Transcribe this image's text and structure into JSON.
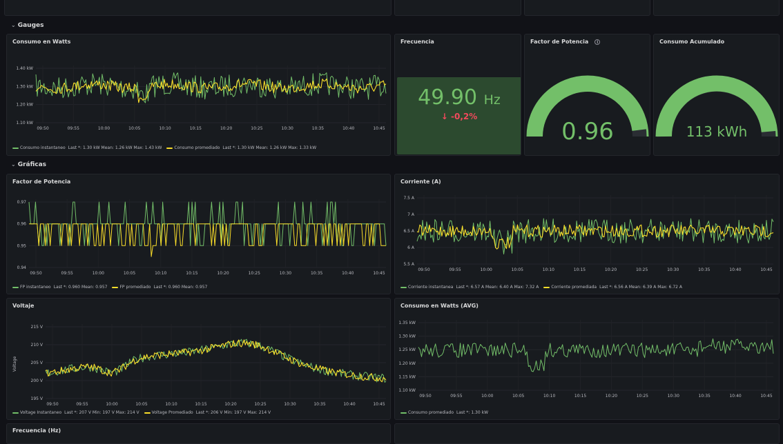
{
  "rows": {
    "gauges": "Gauges",
    "graficas": "Gráficas"
  },
  "top_panels": 4,
  "consumo_watts": {
    "title": "Consumo en Watts",
    "yticks": [
      "1.40 kW",
      "1.30 kW",
      "1.20 kW",
      "1.10 kW"
    ],
    "xticks": [
      "09:50",
      "09:55",
      "10:00",
      "10:05",
      "10:10",
      "10:15",
      "10:20",
      "10:25",
      "10:30",
      "10:35",
      "10:40",
      "10:45"
    ],
    "legend": [
      {
        "name": "Consumo instantaneo",
        "stats": "Last *: 1.30 kW  Mean: 1.26 kW  Max: 1.43 kW",
        "color": "#73bf69"
      },
      {
        "name": "Consumo promediado",
        "stats": "Last *: 1.30 kW  Mean: 1.26 kW  Max: 1.33 kW",
        "color": "#fade2a"
      }
    ]
  },
  "frecuencia_stat": {
    "title": "Frecuencia",
    "value": "49.90",
    "unit": "Hz",
    "delta": "-0,2%"
  },
  "factor_gauge": {
    "title": "Factor de Potencia",
    "value": "0.96",
    "fill": 0.96
  },
  "consumo_acum": {
    "title": "Consumo Acumulado",
    "value": "113 kWh",
    "fill": 0.97
  },
  "fp_chart": {
    "title": "Factor de Potencia",
    "yticks": [
      "0.97",
      "0.96",
      "0.95",
      "0.94"
    ],
    "xticks": [
      "09:50",
      "09:55",
      "10:00",
      "10:05",
      "10:10",
      "10:15",
      "10:20",
      "10:25",
      "10:30",
      "10:35",
      "10:40",
      "10:45"
    ],
    "legend": [
      {
        "name": "FP instantaneo",
        "stats": "Last *: 0.960  Mean: 0.957",
        "color": "#73bf69"
      },
      {
        "name": "FP promediado",
        "stats": "Last *: 0.960  Mean: 0.957",
        "color": "#fade2a"
      }
    ]
  },
  "corriente": {
    "title": "Corriente (A)",
    "yticks": [
      "7.5 A",
      "7 A",
      "6.5 A",
      "6 A",
      "5.5 A"
    ],
    "xticks": [
      "09:50",
      "09:55",
      "10:00",
      "10:05",
      "10:10",
      "10:15",
      "10:20",
      "10:25",
      "10:30",
      "10:35",
      "10:40",
      "10:45"
    ],
    "legend": [
      {
        "name": "Corriente instantanea",
        "stats": "Last *: 6.57 A  Mean: 6.40 A  Max: 7.32 A",
        "color": "#73bf69"
      },
      {
        "name": "Corriente promediada",
        "stats": "Last *: 6.56 A  Mean: 6.39 A  Max: 6.72 A",
        "color": "#fade2a"
      }
    ]
  },
  "voltaje": {
    "title": "Voltaje",
    "ylabel": "Voltage",
    "yticks": [
      "215 V",
      "210 V",
      "205 V",
      "200 V",
      "195 V"
    ],
    "xticks": [
      "09:50",
      "09:55",
      "10:00",
      "10:05",
      "10:10",
      "10:15",
      "10:20",
      "10:25",
      "10:30",
      "10:35",
      "10:40",
      "10:45"
    ],
    "legend": [
      {
        "name": "Voltage Instantaneo",
        "stats": "Last *: 207 V  Min: 197 V  Max: 214 V",
        "color": "#73bf69"
      },
      {
        "name": "Voltage Promediado",
        "stats": "Last *: 206 V  Min: 197 V  Max: 214 V",
        "color": "#fade2a"
      }
    ]
  },
  "consumo_avg": {
    "title": "Consumo en Watts (AVG)",
    "yticks": [
      "1.35 kW",
      "1.30 kW",
      "1.25 kW",
      "1.20 kW",
      "1.15 kW",
      "1.10 kW"
    ],
    "xticks": [
      "09:50",
      "09:55",
      "10:00",
      "10:05",
      "10:10",
      "10:15",
      "10:20",
      "10:25",
      "10:30",
      "10:35",
      "10:40",
      "10:45"
    ],
    "legend": [
      {
        "name": "Consumo promediado",
        "stats": "Last *: 1.30 kW",
        "color": "#73bf69"
      }
    ]
  },
  "freq_hz": {
    "title": "Frecuencia (Hz)"
  }
}
